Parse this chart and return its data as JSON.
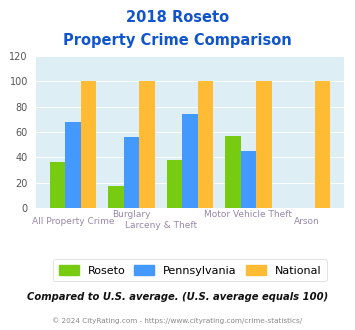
{
  "title_line1": "2018 Roseto",
  "title_line2": "Property Crime Comparison",
  "cat_labels_top": [
    "Burglary",
    "Motor Vehicle Theft"
  ],
  "cat_labels_bottom": [
    "All Property Crime",
    "Larceny & Theft",
    "",
    "Arson"
  ],
  "roseto": [
    36,
    17,
    38,
    57,
    0
  ],
  "pennsylvania": [
    68,
    56,
    74,
    45,
    0
  ],
  "national": [
    100,
    100,
    100,
    100,
    100
  ],
  "bar_colors": {
    "roseto": "#77cc11",
    "pennsylvania": "#4499ff",
    "national": "#ffbb33"
  },
  "ylim": [
    0,
    120
  ],
  "yticks": [
    0,
    20,
    40,
    60,
    80,
    100,
    120
  ],
  "plot_bg": "#ddeef5",
  "title_color": "#1155cc",
  "xlabel_color": "#9988aa",
  "subtitle_text": "Compared to U.S. average. (U.S. average equals 100)",
  "subtitle_color": "#111111",
  "footer_text": "© 2024 CityRating.com - https://www.cityrating.com/crime-statistics/",
  "footer_color": "#888888",
  "legend_labels": [
    "Roseto",
    "Pennsylvania",
    "National"
  ]
}
